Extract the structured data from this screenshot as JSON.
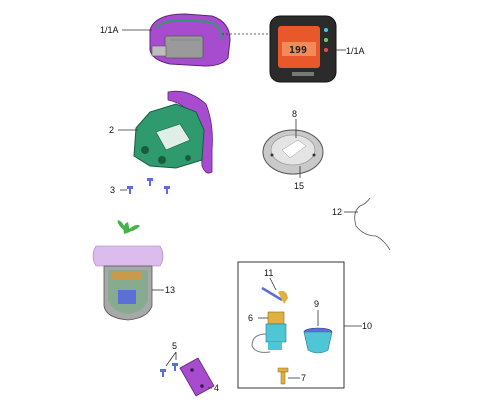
{
  "callouts": {
    "c1a_top": "1/1A",
    "c1a_right": "1/1A",
    "c2": "2",
    "c3": "3",
    "c4": "4",
    "c5": "5",
    "c6": "6",
    "c7": "7",
    "c8": "8",
    "c9": "9",
    "c10": "10",
    "c11": "11",
    "c12": "12",
    "c13": "13",
    "c15": "15"
  },
  "dashboard": {
    "display_value": "199"
  },
  "colors": {
    "housing_purple": "#a84ccf",
    "bracket_green": "#2f9a6e",
    "lcd_orange": "#e8582a",
    "sensor_cyan": "#4fc6d6",
    "sensor_blue": "#5b6fd6",
    "cover_gray": "#c9c9c9"
  }
}
